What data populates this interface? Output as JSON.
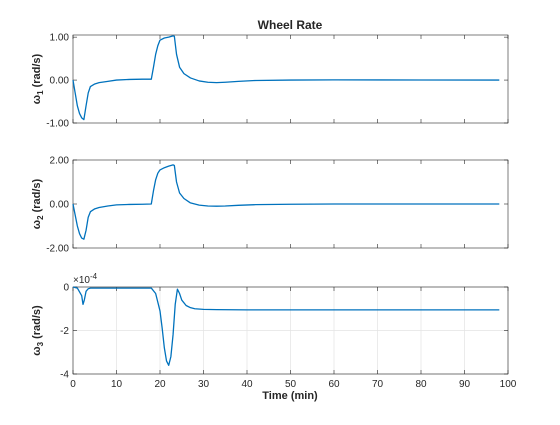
{
  "chart_data": {
    "type": "line",
    "title": "Wheel Rate",
    "xlabel": "Time (min)",
    "xlim": [
      0,
      100
    ],
    "xticks": [
      0,
      10,
      20,
      30,
      40,
      50,
      60,
      70,
      80,
      90,
      100
    ],
    "series_color": "#0072BD",
    "subplots": [
      {
        "id": "w1",
        "ylabel_main": "ω",
        "ylabel_sub": "1",
        "ylabel_units": " (rad/s)",
        "ylim": [
          -1.0,
          1.05
        ],
        "yticks": [
          -1,
          0,
          1
        ],
        "ytick_labels": [
          "-1.00",
          "0.00",
          "1.00"
        ],
        "grid": false,
        "exponent": "",
        "x": [
          0,
          0.5,
          1,
          1.5,
          2,
          2.5,
          3,
          3.5,
          4,
          5,
          6,
          8,
          10,
          13,
          16,
          18,
          18.5,
          19,
          19.5,
          20,
          21,
          22,
          23,
          23.3,
          23.8,
          24.5,
          25.5,
          27,
          29,
          31,
          33,
          35,
          38,
          42,
          50,
          60,
          80,
          98
        ],
        "y": [
          0,
          -0.3,
          -0.6,
          -0.78,
          -0.88,
          -0.92,
          -0.6,
          -0.3,
          -0.15,
          -0.09,
          -0.06,
          -0.03,
          0,
          0.015,
          0.02,
          0.02,
          0.3,
          0.6,
          0.8,
          0.93,
          0.98,
          1.0,
          1.03,
          1.02,
          0.6,
          0.3,
          0.15,
          0.05,
          -0.02,
          -0.05,
          -0.06,
          -0.05,
          -0.03,
          -0.01,
          0,
          0.005,
          0.002,
          0
        ]
      },
      {
        "id": "w2",
        "ylabel_main": "ω",
        "ylabel_sub": "2",
        "ylabel_units": " (rad/s)",
        "ylim": [
          -2.0,
          2.0
        ],
        "yticks": [
          -2,
          0,
          2
        ],
        "ytick_labels": [
          "-2.00",
          "0.00",
          "2.00"
        ],
        "grid": false,
        "exponent": "",
        "x": [
          0,
          0.5,
          1,
          1.5,
          2,
          2.5,
          3,
          3.5,
          4,
          5,
          6,
          8,
          10,
          13,
          16,
          18,
          18.5,
          19,
          19.5,
          20,
          21,
          22,
          23,
          23.3,
          23.8,
          24.5,
          25.5,
          27,
          29,
          31,
          33,
          35,
          38,
          42,
          50,
          60,
          80,
          98
        ],
        "y": [
          0,
          -0.5,
          -1.0,
          -1.35,
          -1.55,
          -1.6,
          -1.2,
          -0.6,
          -0.35,
          -0.22,
          -0.16,
          -0.09,
          -0.04,
          -0.02,
          -0.01,
          0,
          0.6,
          1.1,
          1.4,
          1.55,
          1.65,
          1.72,
          1.78,
          1.75,
          1.0,
          0.5,
          0.25,
          0.05,
          -0.05,
          -0.09,
          -0.1,
          -0.09,
          -0.06,
          -0.03,
          -0.01,
          0,
          0,
          0
        ]
      },
      {
        "id": "w3",
        "ylabel_main": "ω",
        "ylabel_sub": "3",
        "ylabel_units": " (rad/s)",
        "ylim": [
          -4,
          0
        ],
        "yticks": [
          -4,
          -2,
          0
        ],
        "ytick_labels": [
          "-4",
          "-2",
          "0"
        ],
        "grid": true,
        "exponent_base": "×10",
        "exponent_power": "-4",
        "x": [
          0,
          1,
          2,
          2.3,
          2.6,
          3,
          3.5,
          4,
          6,
          10,
          14,
          18,
          19,
          20,
          20.5,
          21,
          21.5,
          22,
          22.5,
          23,
          23.5,
          24,
          24.5,
          25,
          26,
          27,
          28,
          30,
          33,
          40,
          60,
          80,
          98
        ],
        "y": [
          0,
          -0.05,
          -0.4,
          -0.8,
          -0.6,
          -0.2,
          -0.08,
          -0.05,
          -0.05,
          -0.05,
          -0.05,
          -0.05,
          -0.3,
          -1.1,
          -1.9,
          -2.8,
          -3.4,
          -3.6,
          -3.2,
          -2.2,
          -0.8,
          -0.1,
          -0.3,
          -0.6,
          -0.85,
          -0.95,
          -1.0,
          -1.03,
          -1.04,
          -1.05,
          -1.05,
          -1.05,
          -1.05
        ]
      }
    ]
  }
}
